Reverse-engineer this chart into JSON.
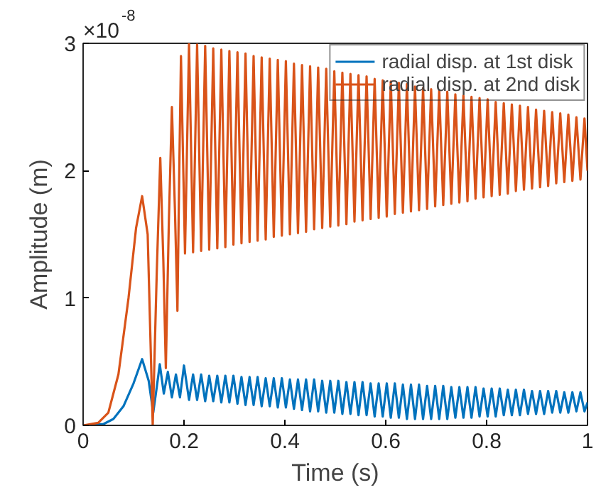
{
  "chart_data": {
    "type": "line",
    "xlabel": "Time (s)",
    "ylabel": "Amplitude (m)",
    "annotations": [
      "×10$^{-8}$"
    ],
    "xlim": [
      0,
      1
    ],
    "xticks": [
      0,
      0.2,
      0.4,
      0.6,
      0.8,
      1
    ],
    "ylim": [
      0,
      3
    ],
    "yticks": [
      0,
      1,
      2,
      3
    ],
    "grid": false,
    "legend": "top right",
    "line_style": "solid",
    "marker": "none",
    "series": [
      {
        "name": "radial disp. at 1st disk",
        "color": "#0072bd",
        "x": [
          0,
          0.04,
          0.06,
          0.08,
          0.1,
          0.117,
          0.13,
          0.139,
          0.146,
          0.152,
          0.16,
          0.168,
          0.176,
          0.184,
          0.192,
          0.2,
          0.21,
          0.218,
          0.226,
          0.234,
          0.242,
          0.25,
          0.258,
          0.266,
          0.274,
          0.282,
          0.29,
          0.298,
          0.306,
          0.314,
          0.322,
          0.33,
          0.338,
          0.346,
          0.354,
          0.362,
          0.37,
          0.378,
          0.386,
          0.394,
          0.402,
          0.41,
          0.418,
          0.426,
          0.434,
          0.442,
          0.45,
          0.458,
          0.466,
          0.474,
          0.482,
          0.49,
          0.498,
          0.506,
          0.514,
          0.522,
          0.53,
          0.538,
          0.546,
          0.554,
          0.562,
          0.57,
          0.578,
          0.586,
          0.594,
          0.602,
          0.61,
          0.618,
          0.626,
          0.634,
          0.642,
          0.65,
          0.658,
          0.666,
          0.674,
          0.682,
          0.69,
          0.698,
          0.706,
          0.714,
          0.722,
          0.73,
          0.738,
          0.746,
          0.754,
          0.762,
          0.77,
          0.778,
          0.786,
          0.794,
          0.802,
          0.81,
          0.818,
          0.826,
          0.834,
          0.842,
          0.85,
          0.858,
          0.866,
          0.874,
          0.882,
          0.89,
          0.898,
          0.906,
          0.914,
          0.922,
          0.93,
          0.938,
          0.946,
          0.954,
          0.962,
          0.97,
          0.978,
          0.986,
          0.994,
          1.0
        ],
        "values": [
          0,
          0.01,
          0.05,
          0.15,
          0.33,
          0.52,
          0.35,
          0.1,
          0.3,
          0.48,
          0.25,
          0.42,
          0.22,
          0.4,
          0.22,
          0.47,
          0.2,
          0.4,
          0.2,
          0.4,
          0.19,
          0.39,
          0.19,
          0.39,
          0.18,
          0.39,
          0.18,
          0.39,
          0.17,
          0.38,
          0.16,
          0.38,
          0.16,
          0.38,
          0.15,
          0.37,
          0.15,
          0.37,
          0.14,
          0.37,
          0.14,
          0.36,
          0.13,
          0.36,
          0.12,
          0.36,
          0.11,
          0.36,
          0.11,
          0.35,
          0.1,
          0.35,
          0.1,
          0.35,
          0.09,
          0.34,
          0.09,
          0.34,
          0.08,
          0.34,
          0.08,
          0.33,
          0.07,
          0.33,
          0.07,
          0.33,
          0.06,
          0.33,
          0.06,
          0.32,
          0.05,
          0.32,
          0.05,
          0.32,
          0.05,
          0.31,
          0.05,
          0.31,
          0.05,
          0.31,
          0.05,
          0.3,
          0.06,
          0.3,
          0.06,
          0.3,
          0.06,
          0.3,
          0.07,
          0.29,
          0.07,
          0.29,
          0.07,
          0.29,
          0.08,
          0.28,
          0.08,
          0.28,
          0.08,
          0.28,
          0.09,
          0.27,
          0.09,
          0.27,
          0.09,
          0.27,
          0.1,
          0.27,
          0.1,
          0.26,
          0.1,
          0.26,
          0.11,
          0.26,
          0.11,
          0.18
        ]
      },
      {
        "name": "radial disp. at 2nd disk",
        "color": "#d95319",
        "x": [
          0,
          0.03,
          0.05,
          0.07,
          0.09,
          0.105,
          0.117,
          0.128,
          0.138,
          0.146,
          0.153,
          0.159,
          0.164,
          0.17,
          0.176,
          0.182,
          0.187,
          0.191,
          0.194,
          0.202,
          0.21,
          0.218,
          0.226,
          0.234,
          0.242,
          0.25,
          0.258,
          0.266,
          0.274,
          0.282,
          0.29,
          0.298,
          0.306,
          0.314,
          0.322,
          0.33,
          0.338,
          0.346,
          0.354,
          0.362,
          0.37,
          0.378,
          0.386,
          0.394,
          0.402,
          0.41,
          0.418,
          0.426,
          0.434,
          0.442,
          0.45,
          0.458,
          0.466,
          0.474,
          0.482,
          0.49,
          0.498,
          0.506,
          0.514,
          0.522,
          0.53,
          0.538,
          0.546,
          0.554,
          0.562,
          0.57,
          0.578,
          0.586,
          0.594,
          0.602,
          0.61,
          0.618,
          0.626,
          0.634,
          0.642,
          0.65,
          0.658,
          0.666,
          0.674,
          0.682,
          0.69,
          0.698,
          0.706,
          0.714,
          0.722,
          0.73,
          0.738,
          0.746,
          0.754,
          0.762,
          0.77,
          0.778,
          0.786,
          0.794,
          0.802,
          0.81,
          0.818,
          0.826,
          0.834,
          0.842,
          0.85,
          0.858,
          0.866,
          0.874,
          0.882,
          0.89,
          0.898,
          0.906,
          0.914,
          0.922,
          0.93,
          0.938,
          0.946,
          0.954,
          0.962,
          0.97,
          0.978,
          0.986,
          0.994,
          1.0
        ],
        "values": [
          0,
          0.02,
          0.1,
          0.4,
          1.0,
          1.55,
          1.8,
          1.5,
          0.0,
          1.2,
          2.1,
          1.3,
          0.45,
          1.6,
          2.5,
          1.7,
          0.9,
          2.1,
          2.9,
          1.35,
          3.0,
          1.36,
          2.99,
          1.37,
          2.98,
          1.38,
          2.96,
          1.39,
          2.95,
          1.4,
          2.94,
          1.42,
          2.93,
          1.43,
          2.92,
          1.44,
          2.9,
          1.45,
          2.89,
          1.46,
          2.88,
          1.48,
          2.87,
          1.49,
          2.86,
          1.5,
          2.84,
          1.51,
          2.83,
          1.52,
          2.82,
          1.54,
          2.81,
          1.55,
          2.8,
          1.56,
          2.78,
          1.57,
          2.77,
          1.58,
          2.76,
          1.6,
          2.75,
          1.61,
          2.74,
          1.62,
          2.72,
          1.63,
          2.71,
          1.64,
          2.7,
          1.66,
          2.69,
          1.67,
          2.68,
          1.68,
          2.66,
          1.69,
          2.65,
          1.7,
          2.64,
          1.72,
          2.63,
          1.73,
          2.62,
          1.74,
          2.6,
          1.75,
          2.59,
          1.76,
          2.58,
          1.78,
          2.57,
          1.79,
          2.56,
          1.8,
          2.54,
          1.81,
          2.53,
          1.82,
          2.52,
          1.84,
          2.51,
          1.85,
          2.5,
          1.86,
          2.48,
          1.87,
          2.47,
          1.88,
          2.46,
          1.9,
          2.45,
          1.91,
          2.44,
          1.92,
          2.42,
          1.93,
          2.41,
          2.0
        ]
      }
    ]
  }
}
